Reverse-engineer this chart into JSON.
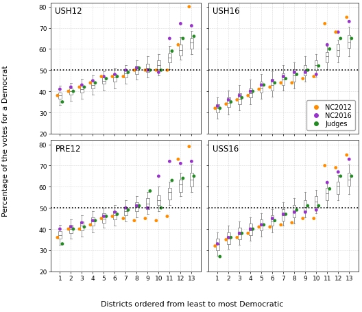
{
  "panels": [
    "USH12",
    "USH16",
    "PRE12",
    "USS16"
  ],
  "n_districts": 13,
  "ylim": [
    20,
    82
  ],
  "yticks": [
    20,
    30,
    40,
    50,
    60,
    70,
    80
  ],
  "xlabel": "Districts ordered from least to most Democratic",
  "ylabel": "Percentage of the votes for a Democrat",
  "dashed_line": 50,
  "colors": {
    "NC2012": "#FF8C00",
    "NC2016": "#9932CC",
    "Judges": "#228B22"
  },
  "box_color": "white",
  "box_edgecolor": "#888888",
  "whisker_color": "#888888",
  "median_color": "#888888",
  "box_data": {
    "USH12": {
      "q1": [
        36.5,
        38.5,
        39.5,
        41.5,
        43.5,
        44.5,
        46.5,
        48.0,
        49.0,
        50.5,
        53.5,
        57.0,
        60.0
      ],
      "med": [
        38.0,
        40.0,
        41.0,
        43.0,
        45.0,
        46.5,
        48.5,
        50.0,
        51.0,
        52.5,
        56.0,
        59.5,
        63.0
      ],
      "q3": [
        39.5,
        41.5,
        42.5,
        44.5,
        46.5,
        48.0,
        50.0,
        52.0,
        53.0,
        54.5,
        58.0,
        62.0,
        65.0
      ],
      "wlo": [
        33.5,
        35.5,
        36.5,
        38.5,
        40.5,
        41.5,
        43.5,
        45.5,
        46.5,
        47.5,
        50.5,
        55.0,
        57.5
      ],
      "whi": [
        42.5,
        44.0,
        46.0,
        47.5,
        49.5,
        51.0,
        52.5,
        54.5,
        56.5,
        57.5,
        61.5,
        65.5,
        68.5
      ],
      "NC2012": [
        38,
        40,
        42,
        44,
        47,
        47,
        47,
        50,
        50,
        50,
        50,
        62,
        80
      ],
      "NC2016": [
        41,
        42,
        43,
        45,
        47,
        48,
        50,
        51,
        50,
        49,
        65,
        72,
        71
      ],
      "Judges": [
        35,
        40,
        42,
        44,
        46,
        47,
        49,
        51,
        50,
        50,
        59,
        65,
        66
      ]
    },
    "USH16": {
      "q1": [
        30.0,
        32.5,
        34.0,
        37.0,
        39.5,
        40.5,
        43.0,
        44.5,
        47.5,
        50.0,
        53.5,
        56.5,
        60.5
      ],
      "med": [
        32.0,
        34.5,
        36.0,
        39.0,
        41.5,
        43.0,
        45.5,
        47.5,
        50.0,
        52.5,
        56.5,
        59.5,
        63.5
      ],
      "q3": [
        34.0,
        37.0,
        39.0,
        41.5,
        44.5,
        46.0,
        48.5,
        50.5,
        52.5,
        54.5,
        58.5,
        62.5,
        66.5
      ],
      "wlo": [
        27.0,
        29.0,
        31.0,
        34.0,
        36.5,
        37.5,
        40.5,
        41.5,
        44.5,
        47.0,
        50.5,
        53.5,
        56.5
      ],
      "whi": [
        37.0,
        40.5,
        43.0,
        45.5,
        48.0,
        49.5,
        52.5,
        53.5,
        56.5,
        57.5,
        61.5,
        64.5,
        70.5
      ],
      "NC2012": [
        32,
        34,
        36,
        38,
        41,
        42,
        44,
        44,
        46,
        47,
        72,
        68,
        75
      ],
      "NC2016": [
        33,
        36,
        38,
        40,
        43,
        45,
        47,
        49,
        49,
        48,
        62,
        68,
        73
      ],
      "Judges": [
        32,
        35,
        37,
        40,
        43,
        44,
        46,
        48,
        50,
        52,
        60,
        65,
        65
      ]
    },
    "PRE12": {
      "q1": [
        35.5,
        38.0,
        39.5,
        41.5,
        43.0,
        44.5,
        46.5,
        48.5,
        49.5,
        51.5,
        54.0,
        57.5,
        60.0
      ],
      "med": [
        37.0,
        40.0,
        41.5,
        43.5,
        45.0,
        46.5,
        48.5,
        50.5,
        52.0,
        53.5,
        57.5,
        61.0,
        63.5
      ],
      "q3": [
        39.0,
        42.0,
        43.5,
        45.5,
        47.5,
        48.5,
        50.5,
        52.5,
        54.5,
        56.0,
        59.5,
        63.5,
        66.5
      ],
      "wlo": [
        32.5,
        35.5,
        36.5,
        38.5,
        40.5,
        41.5,
        43.5,
        45.5,
        47.0,
        48.5,
        51.5,
        55.5,
        57.5
      ],
      "whi": [
        42.0,
        44.5,
        46.5,
        48.5,
        50.0,
        51.5,
        53.5,
        55.5,
        57.5,
        60.0,
        62.5,
        66.5,
        70.5
      ],
      "NC2012": [
        36,
        40,
        40,
        42,
        45,
        46,
        45,
        44,
        45,
        44,
        46,
        73,
        79
      ],
      "NC2016": [
        40,
        41,
        43,
        44,
        46,
        48,
        50,
        51,
        50,
        65,
        72,
        71,
        72
      ],
      "Judges": [
        33,
        40,
        41,
        44,
        46,
        47,
        49,
        51,
        58,
        50,
        63,
        64,
        65
      ]
    },
    "USS16": {
      "q1": [
        30.0,
        33.0,
        35.0,
        37.0,
        39.5,
        41.5,
        44.0,
        45.5,
        48.0,
        50.5,
        53.5,
        56.5,
        60.5
      ],
      "med": [
        33.0,
        35.5,
        37.5,
        39.5,
        42.0,
        44.0,
        46.5,
        48.5,
        50.5,
        53.0,
        57.0,
        60.5,
        63.5
      ],
      "q3": [
        35.5,
        38.5,
        40.5,
        42.5,
        44.5,
        46.5,
        49.5,
        51.5,
        53.5,
        55.5,
        59.5,
        62.5,
        66.5
      ],
      "wlo": [
        27.5,
        30.5,
        32.5,
        34.5,
        36.5,
        38.5,
        41.5,
        42.5,
        45.5,
        47.5,
        50.5,
        53.5,
        56.5
      ],
      "whi": [
        38.5,
        41.5,
        43.5,
        45.5,
        47.5,
        49.5,
        52.5,
        54.5,
        57.5,
        58.5,
        62.5,
        65.5,
        70.5
      ],
      "NC2012": [
        32,
        35,
        36,
        38,
        41,
        41,
        42,
        43,
        45,
        45,
        70,
        69,
        75
      ],
      "NC2016": [
        33,
        36,
        38,
        40,
        42,
        45,
        47,
        48,
        48,
        49,
        62,
        67,
        73
      ],
      "Judges": [
        27,
        36,
        38,
        40,
        42,
        44,
        47,
        49,
        51,
        51,
        59,
        65,
        65
      ]
    }
  }
}
